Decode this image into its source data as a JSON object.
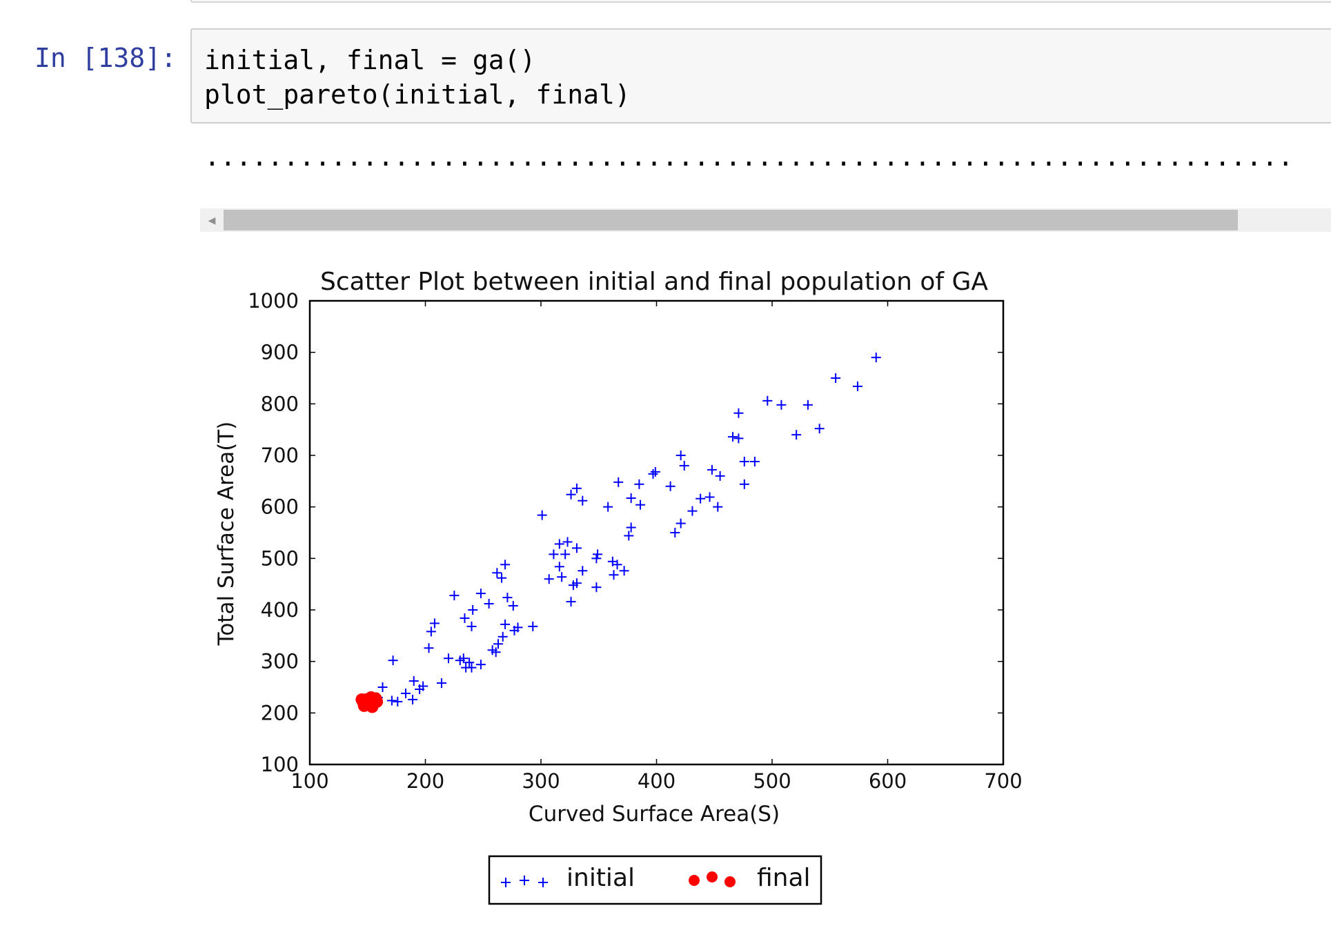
{
  "cell": {
    "prompt": "In [138]:",
    "code_lines": [
      "initial, final = ga()",
      "plot_pareto(initial, final)"
    ],
    "output_progress": "....................................................................."
  },
  "chart_data": {
    "type": "scatter",
    "title": "Scatter Plot between initial and final population of GA",
    "xlabel": "Curved Surface Area(S)",
    "ylabel": "Total Surface Area(T)",
    "xlim": [
      100,
      700
    ],
    "ylim": [
      100,
      1000
    ],
    "xticks": [
      "100",
      "200",
      "300",
      "400",
      "500",
      "600",
      "700"
    ],
    "yticks": [
      "100",
      "200",
      "300",
      "400",
      "500",
      "600",
      "700",
      "800",
      "900",
      "1000"
    ],
    "grid": false,
    "legend_position": "bottom-center, below plot",
    "series": [
      {
        "name": "initial",
        "marker": "plus",
        "color": "#0000ff",
        "points": [
          [
            590,
            890
          ],
          [
            555,
            850
          ],
          [
            574,
            834
          ],
          [
            496,
            806
          ],
          [
            508,
            798
          ],
          [
            531,
            798
          ],
          [
            521,
            740
          ],
          [
            541,
            752
          ],
          [
            471,
            782
          ],
          [
            466,
            736
          ],
          [
            471,
            733
          ],
          [
            476,
            688
          ],
          [
            485,
            688
          ],
          [
            476,
            644
          ],
          [
            448,
            672
          ],
          [
            455,
            660
          ],
          [
            453,
            600
          ],
          [
            446,
            619
          ],
          [
            438,
            616
          ],
          [
            431,
            592
          ],
          [
            421,
            568
          ],
          [
            416,
            550
          ],
          [
            421,
            700
          ],
          [
            424,
            680
          ],
          [
            412,
            640
          ],
          [
            399,
            668
          ],
          [
            397,
            664
          ],
          [
            385,
            644
          ],
          [
            378,
            617
          ],
          [
            386,
            604
          ],
          [
            378,
            560
          ],
          [
            376,
            544
          ],
          [
            367,
            648
          ],
          [
            358,
            600
          ],
          [
            326,
            624
          ],
          [
            331,
            636
          ],
          [
            336,
            612
          ],
          [
            301,
            584
          ],
          [
            316,
            528
          ],
          [
            323,
            532
          ],
          [
            331,
            520
          ],
          [
            311,
            508
          ],
          [
            321,
            508
          ],
          [
            316,
            484
          ],
          [
            318,
            464
          ],
          [
            307,
            460
          ],
          [
            336,
            476
          ],
          [
            349,
            508
          ],
          [
            348,
            500
          ],
          [
            362,
            494
          ],
          [
            366,
            488
          ],
          [
            363,
            468
          ],
          [
            372,
            476
          ],
          [
            348,
            444
          ],
          [
            331,
            452
          ],
          [
            328,
            448
          ],
          [
            326,
            416
          ],
          [
            269,
            488
          ],
          [
            266,
            462
          ],
          [
            262,
            472
          ],
          [
            271,
            424
          ],
          [
            276,
            408
          ],
          [
            269,
            372
          ],
          [
            277,
            360
          ],
          [
            280,
            366
          ],
          [
            267,
            348
          ],
          [
            263,
            334
          ],
          [
            258,
            322
          ],
          [
            261,
            318
          ],
          [
            293,
            368
          ],
          [
            248,
            432
          ],
          [
            255,
            412
          ],
          [
            241,
            400
          ],
          [
            225,
            428
          ],
          [
            234,
            384
          ],
          [
            240,
            368
          ],
          [
            208,
            374
          ],
          [
            205,
            358
          ],
          [
            203,
            326
          ],
          [
            220,
            306
          ],
          [
            230,
            302
          ],
          [
            233,
            306
          ],
          [
            238,
            298
          ],
          [
            235,
            288
          ],
          [
            240,
            288
          ],
          [
            248,
            294
          ],
          [
            214,
            258
          ],
          [
            172,
            302
          ],
          [
            190,
            262
          ],
          [
            198,
            252
          ],
          [
            195,
            246
          ],
          [
            189,
            226
          ],
          [
            183,
            238
          ],
          [
            176,
            222
          ],
          [
            171,
            224
          ],
          [
            163,
            250
          ],
          [
            159,
            230
          ]
        ]
      },
      {
        "name": "final",
        "marker": "circle",
        "color": "#ff0000",
        "points": [
          [
            146,
            222
          ],
          [
            149,
            226
          ],
          [
            152,
            224
          ],
          [
            155,
            220
          ],
          [
            157,
            228
          ],
          [
            150,
            216
          ],
          [
            154,
            212
          ],
          [
            148,
            218
          ],
          [
            153,
            230
          ],
          [
            145,
            226
          ],
          [
            151,
            220
          ],
          [
            156,
            224
          ],
          [
            158,
            222
          ],
          [
            147,
            214
          ]
        ]
      }
    ]
  }
}
